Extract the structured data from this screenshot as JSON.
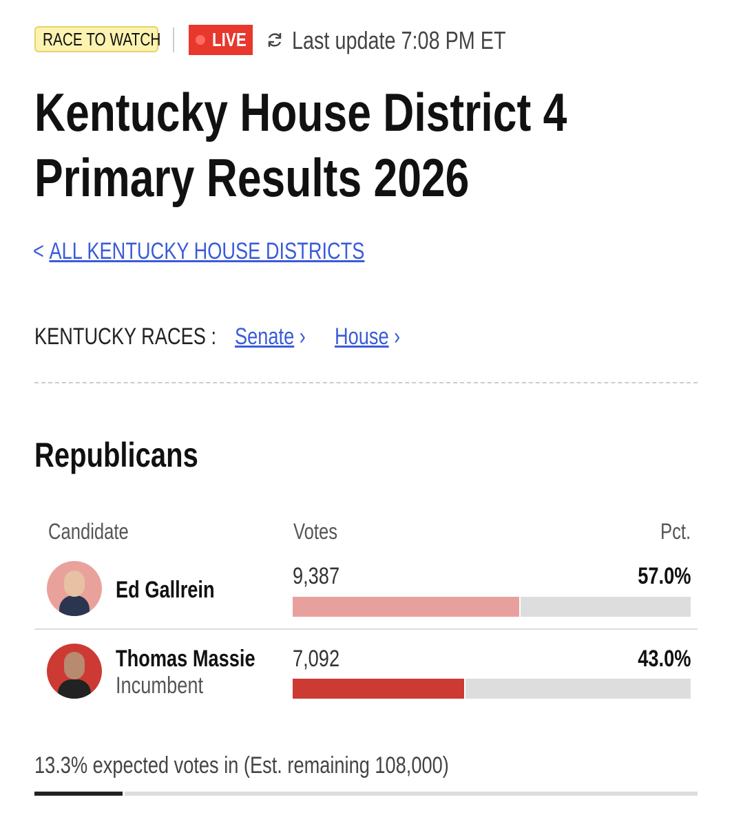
{
  "header": {
    "badge": "RACE TO WATCH",
    "live": "LIVE",
    "last_update": "Last update 7:08 PM ET"
  },
  "title_lines": [
    "Kentucky House District 4",
    "Primary Results 2026"
  ],
  "back_link": "ALL KENTUCKY HOUSE DISTRICTS",
  "races": {
    "label": "KENTUCKY RACES :",
    "links": [
      "Senate",
      "House"
    ]
  },
  "party": "Republicans",
  "table": {
    "columns": [
      "Candidate",
      "Votes",
      "Pct."
    ],
    "rows": [
      {
        "name": "Ed Gallrein",
        "votes": "9,387",
        "pct": {
          "value": 57.0,
          "label": "57.0%"
        }
      },
      {
        "name": "Thomas Massie",
        "status": "Incumbent",
        "votes": "7,092",
        "pct": {
          "value": 43.0,
          "label": "43.0%"
        }
      }
    ]
  },
  "reporting": {
    "text": "13.3% expected votes in (Est. remaining 108,000)",
    "expected_pct": 13.3
  }
}
